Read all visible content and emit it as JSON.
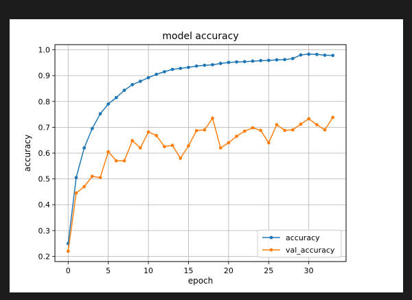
{
  "background_color": "#1c1c1c",
  "chart_data": {
    "type": "line",
    "title": "model accuracy",
    "xlabel": "epoch",
    "ylabel": "accuracy",
    "xlim": [
      -1.65,
      34.65
    ],
    "ylim": [
      0.18,
      1.02
    ],
    "xticks": [
      0,
      5,
      10,
      15,
      20,
      25,
      30
    ],
    "yticks": [
      0.2,
      0.3,
      0.4,
      0.5,
      0.6,
      0.7,
      0.8,
      0.9,
      1.0
    ],
    "xtick_labels": [
      "0",
      "5",
      "10",
      "15",
      "20",
      "25",
      "30"
    ],
    "ytick_labels": [
      "0.2",
      "0.3",
      "0.4",
      "0.5",
      "0.6",
      "0.7",
      "0.8",
      "0.9",
      "1.0"
    ],
    "grid": true,
    "legend_position": "lower-right",
    "x": [
      0,
      1,
      2,
      3,
      4,
      5,
      6,
      7,
      8,
      9,
      10,
      11,
      12,
      13,
      14,
      15,
      16,
      17,
      18,
      19,
      20,
      21,
      22,
      23,
      24,
      25,
      26,
      27,
      28,
      29,
      30,
      31,
      32,
      33
    ],
    "series": [
      {
        "name": "accuracy",
        "color": "#1f77b4",
        "values": [
          0.25,
          0.505,
          0.62,
          0.695,
          0.752,
          0.79,
          0.815,
          0.843,
          0.865,
          0.878,
          0.892,
          0.905,
          0.915,
          0.924,
          0.928,
          0.932,
          0.937,
          0.94,
          0.942,
          0.947,
          0.951,
          0.953,
          0.954,
          0.956,
          0.958,
          0.959,
          0.961,
          0.962,
          0.966,
          0.98,
          0.983,
          0.982,
          0.979,
          0.978
        ]
      },
      {
        "name": "val_accuracy",
        "color": "#ff7f0e",
        "values": [
          0.22,
          0.445,
          0.47,
          0.51,
          0.505,
          0.605,
          0.57,
          0.57,
          0.648,
          0.62,
          0.682,
          0.668,
          0.625,
          0.63,
          0.58,
          0.628,
          0.687,
          0.69,
          0.735,
          0.62,
          0.64,
          0.665,
          0.685,
          0.698,
          0.688,
          0.64,
          0.71,
          0.688,
          0.69,
          0.712,
          0.733,
          0.71,
          0.69,
          0.738
        ]
      }
    ]
  }
}
